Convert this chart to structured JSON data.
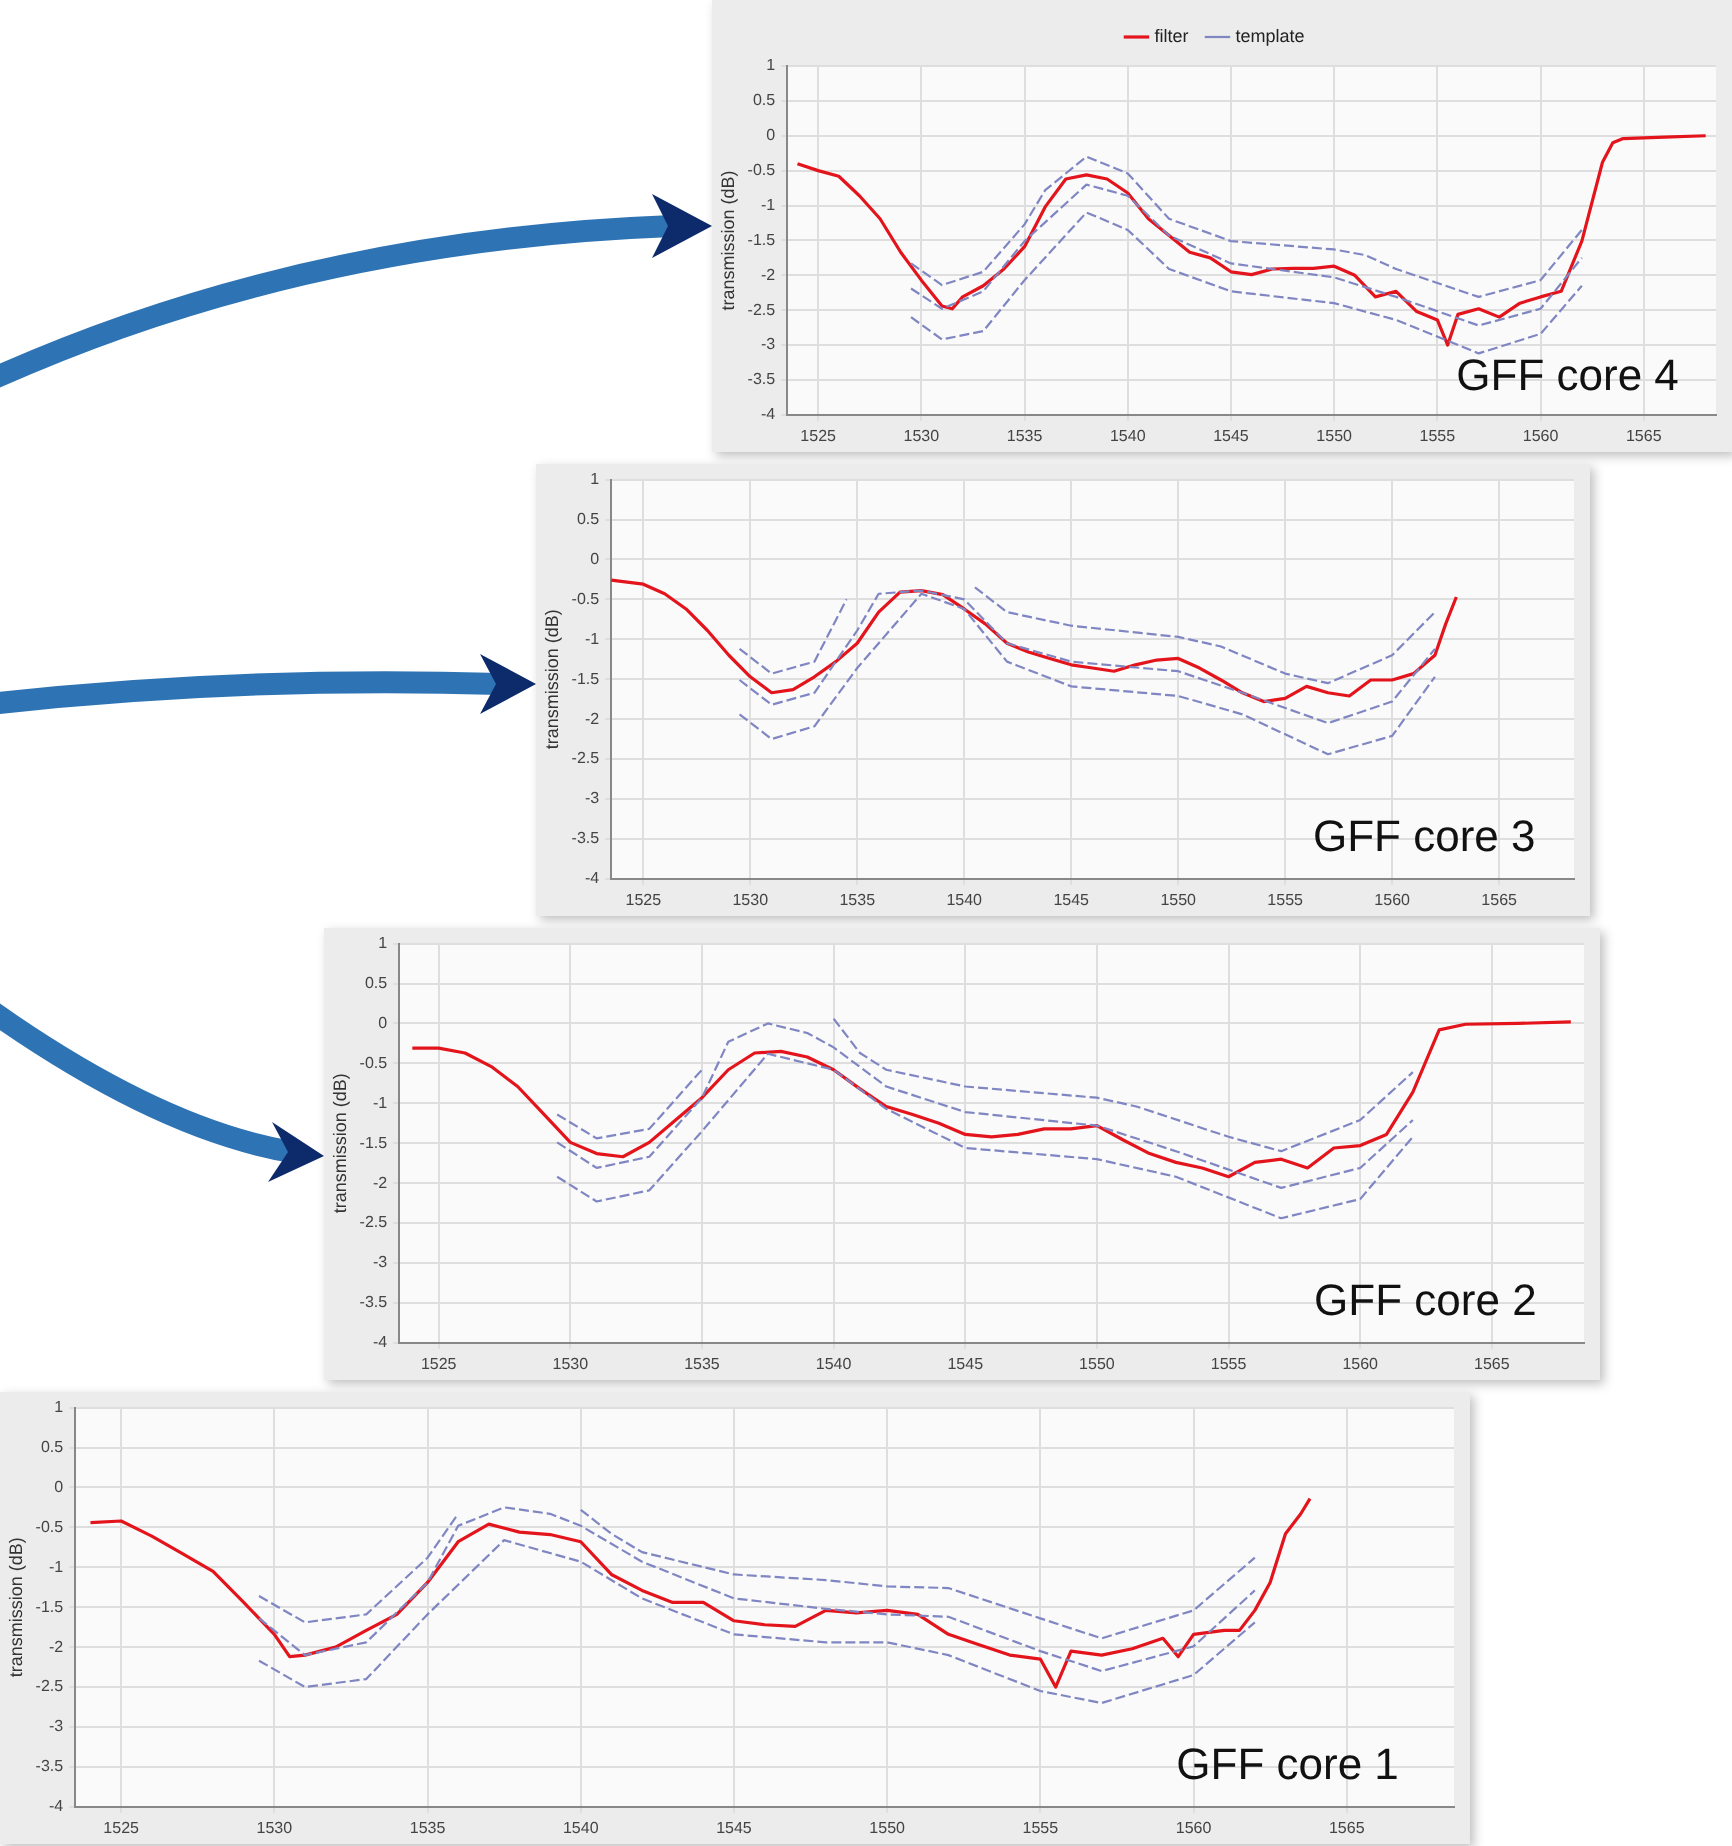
{
  "chart_data": [
    {
      "type": "line",
      "ylabel": "transmission (dB)",
      "annotations": [
        "GFF core 4"
      ],
      "xlim": [
        1523.5,
        1568.5
      ],
      "xticks": [
        1525,
        1530,
        1535,
        1540,
        1545,
        1550,
        1555,
        1560,
        1565
      ],
      "ylim": [
        -4,
        1
      ],
      "yticks": [
        -4,
        -3.5,
        -3,
        -2.5,
        -2,
        -1.5,
        -1,
        -0.5,
        0,
        0.5,
        1
      ],
      "grid": true,
      "legend": "top",
      "series": [
        {
          "name": "filter",
          "color": "#e3141b",
          "line_style": "solid",
          "x": [
            1524,
            1525,
            1526,
            1527,
            1528,
            1529,
            1530,
            1531,
            1531.5,
            1532,
            1533,
            1534,
            1535,
            1536,
            1537,
            1538,
            1539,
            1540,
            1541,
            1542,
            1543,
            1544,
            1545,
            1546,
            1547,
            1548,
            1549,
            1550,
            1551,
            1552,
            1553,
            1554,
            1555,
            1555.5,
            1556,
            1557,
            1558,
            1559,
            1560,
            1561,
            1562,
            1563,
            1563.5,
            1564,
            1566,
            1568
          ],
          "values": [
            -0.4,
            -0.5,
            -0.58,
            -0.86,
            -1.19,
            -1.67,
            -2.07,
            -2.44,
            -2.48,
            -2.31,
            -2.15,
            -1.91,
            -1.59,
            -1.02,
            -0.62,
            -0.56,
            -0.62,
            -0.82,
            -1.19,
            -1.43,
            -1.67,
            -1.75,
            -1.95,
            -1.99,
            -1.91,
            -1.9,
            -1.9,
            -1.87,
            -2.0,
            -2.31,
            -2.23,
            -2.52,
            -2.64,
            -3.0,
            -2.56,
            -2.48,
            -2.6,
            -2.4,
            -2.31,
            -2.23,
            -1.51,
            -0.38,
            -0.1,
            -0.04,
            -0.02,
            0
          ]
        },
        {
          "name": "template",
          "color": "#7f86c2",
          "line_style": "dashed",
          "x": [
            1529.5,
            1531,
            1533,
            1535,
            1538,
            1540,
            1542,
            1545,
            1550,
            1553,
            1557,
            1560,
            1562
          ],
          "values": [
            -2.19,
            -2.48,
            -2.23,
            -1.51,
            -0.7,
            -0.86,
            -1.43,
            -1.83,
            -2.03,
            -2.31,
            -2.72,
            -2.48,
            -1.75
          ]
        },
        {
          "color": "#7f86c2",
          "line_style": "dashed",
          "x": [
            1529.5,
            1531,
            1533,
            1535,
            1536,
            1538,
            1540,
            1542,
            1545,
            1550,
            1551.5,
            1553,
            1557,
            1560,
            1562
          ],
          "values": [
            -1.83,
            -2.14,
            -1.95,
            -1.27,
            -0.78,
            -0.3,
            -0.54,
            -1.19,
            -1.51,
            -1.63,
            -1.71,
            -1.91,
            -2.31,
            -2.07,
            -1.35
          ]
        },
        {
          "color": "#7f86c2",
          "line_style": "dashed",
          "x": [
            1529.5,
            1531,
            1533,
            1535,
            1538,
            1540,
            1542,
            1545,
            1550,
            1553,
            1557,
            1560,
            1562
          ],
          "values": [
            -2.6,
            -2.92,
            -2.8,
            -2.07,
            -1.1,
            -1.35,
            -1.91,
            -2.23,
            -2.4,
            -2.64,
            -3.12,
            -2.84,
            -2.15
          ]
        }
      ]
    },
    {
      "type": "line",
      "ylabel": "transmission (dB)",
      "annotations": [
        "GFF core 3"
      ],
      "xlim": [
        1523.5,
        1568.5
      ],
      "xticks": [
        1525,
        1530,
        1535,
        1540,
        1545,
        1550,
        1555,
        1560,
        1565
      ],
      "ylim": [
        -4,
        1
      ],
      "yticks": [
        -4,
        -3.5,
        -3,
        -2.5,
        -2,
        -1.5,
        -1,
        -0.5,
        0,
        0.5,
        1
      ],
      "grid": true,
      "series": [
        {
          "color": "#e3141b",
          "line_style": "solid",
          "x": [
            1523.5,
            1525,
            1526,
            1527,
            1528,
            1529,
            1530,
            1531,
            1532,
            1533,
            1534,
            1535,
            1536,
            1537,
            1538,
            1539,
            1540,
            1541,
            1542,
            1543,
            1544,
            1545,
            1546,
            1547,
            1548,
            1549,
            1550,
            1551,
            1552,
            1553,
            1554,
            1555,
            1556,
            1557,
            1558,
            1559,
            1560,
            1561,
            1562,
            1562.5,
            1563
          ],
          "values": [
            -0.26,
            -0.31,
            -0.43,
            -0.62,
            -0.89,
            -1.2,
            -1.47,
            -1.67,
            -1.63,
            -1.47,
            -1.28,
            -1.05,
            -0.66,
            -0.41,
            -0.39,
            -0.44,
            -0.62,
            -0.81,
            -1.05,
            -1.16,
            -1.24,
            -1.32,
            -1.36,
            -1.4,
            -1.32,
            -1.26,
            -1.24,
            -1.36,
            -1.51,
            -1.67,
            -1.78,
            -1.74,
            -1.59,
            -1.67,
            -1.71,
            -1.51,
            -1.51,
            -1.43,
            -1.2,
            -0.81,
            -0.47
          ]
        },
        {
          "color": "#7f86c2",
          "line_style": "dashed",
          "x": [
            1529.5,
            1531,
            1533,
            1535,
            1536,
            1538,
            1540,
            1542,
            1545,
            1550,
            1553,
            1557,
            1560,
            1562
          ],
          "values": [
            -1.51,
            -1.82,
            -1.67,
            -0.89,
            -0.43,
            -0.39,
            -0.5,
            -1.05,
            -1.28,
            -1.4,
            -1.67,
            -2.05,
            -1.78,
            -1.12
          ]
        },
        {
          "color": "#7f86c2",
          "line_style": "dashed",
          "x": [
            1529.5,
            1531,
            1533,
            1534.5,
            1537,
            1540.5,
            1542,
            1545,
            1550,
            1552,
            1555,
            1557,
            1560,
            1562
          ],
          "values": [
            -1.12,
            -1.43,
            -1.28,
            -0.5,
            null,
            -0.35,
            -0.66,
            -0.83,
            -0.97,
            -1.09,
            -1.43,
            -1.55,
            -1.2,
            -0.66
          ]
        },
        {
          "color": "#7f86c2",
          "line_style": "dashed",
          "x": [
            1529.5,
            1531,
            1533,
            1535,
            1538,
            1540,
            1542,
            1545,
            1550,
            1553,
            1557,
            1560,
            1562
          ],
          "values": [
            -1.94,
            -2.25,
            -2.09,
            -1.36,
            -0.43,
            -0.62,
            -1.28,
            -1.59,
            -1.71,
            -1.94,
            -2.44,
            -2.21,
            -1.47
          ]
        }
      ]
    },
    {
      "type": "line",
      "ylabel": "transmission (dB)",
      "annotations": [
        "GFF core 2"
      ],
      "xlim": [
        1523.5,
        1568.5
      ],
      "xticks": [
        1525,
        1530,
        1535,
        1540,
        1545,
        1550,
        1555,
        1560,
        1565
      ],
      "ylim": [
        -4,
        1
      ],
      "yticks": [
        -4,
        -3.5,
        -3,
        -2.5,
        -2,
        -1.5,
        -1,
        -0.5,
        0,
        0.5,
        1
      ],
      "grid": true,
      "series": [
        {
          "color": "#e3141b",
          "line_style": "solid",
          "x": [
            1524,
            1525,
            1526,
            1527,
            1528,
            1529,
            1530,
            1531,
            1532,
            1533,
            1534,
            1535,
            1536,
            1537,
            1538,
            1539,
            1540,
            1541,
            1542,
            1543,
            1544,
            1545,
            1546,
            1547,
            1548,
            1549,
            1550,
            1551,
            1552,
            1553,
            1554,
            1555,
            1556,
            1557,
            1558,
            1559,
            1560,
            1561,
            1562,
            1563,
            1564,
            1566,
            1568
          ],
          "values": [
            -0.31,
            -0.31,
            -0.37,
            -0.54,
            -0.79,
            -1.14,
            -1.49,
            -1.63,
            -1.67,
            -1.49,
            -1.21,
            -0.93,
            -0.58,
            -0.37,
            -0.35,
            -0.42,
            -0.58,
            -0.82,
            -1.04,
            -1.14,
            -1.25,
            -1.39,
            -1.42,
            -1.39,
            -1.32,
            -1.32,
            -1.28,
            -1.46,
            -1.63,
            -1.74,
            -1.81,
            -1.92,
            -1.74,
            -1.7,
            -1.81,
            -1.56,
            -1.53,
            -1.39,
            -0.86,
            -0.08,
            -0.01,
            0,
            0.02
          ]
        },
        {
          "color": "#7f86c2",
          "line_style": "dashed",
          "x": [
            1529.5,
            1531,
            1533,
            1535,
            1536,
            1537.5,
            1539,
            1540,
            1542,
            1545,
            1550,
            1553,
            1557,
            1560,
            1562
          ],
          "values": [
            -1.49,
            -1.81,
            -1.67,
            -0.93,
            -0.23,
            0,
            -0.12,
            -0.3,
            -0.79,
            -1.11,
            -1.28,
            -1.6,
            -2.06,
            -1.81,
            -1.21
          ]
        },
        {
          "color": "#7f86c2",
          "line_style": "dashed",
          "x": [
            1529.5,
            1531,
            1533,
            1535,
            1537.5,
            1540,
            1541,
            1542,
            1545,
            1550,
            1551.5,
            1555,
            1557,
            1560,
            1562
          ],
          "values": [
            -1.14,
            -1.44,
            -1.32,
            -0.58,
            null,
            0.06,
            -0.37,
            -0.58,
            -0.79,
            -0.93,
            -1.04,
            -1.42,
            -1.6,
            -1.21,
            -0.61
          ]
        },
        {
          "color": "#7f86c2",
          "line_style": "dashed",
          "x": [
            1529.5,
            1531,
            1533,
            1535,
            1537.5,
            1540,
            1542,
            1545,
            1550,
            1553,
            1557,
            1560,
            1562
          ],
          "values": [
            -1.92,
            -2.23,
            -2.09,
            -1.35,
            -0.38,
            -0.58,
            -1.07,
            -1.56,
            -1.7,
            -1.92,
            -2.44,
            -2.2,
            -1.42
          ]
        }
      ]
    },
    {
      "type": "line",
      "ylabel": "transmission (dB)",
      "annotations": [
        "GFF core 1"
      ],
      "xlim": [
        1523.5,
        1568.5
      ],
      "xticks": [
        1525,
        1530,
        1535,
        1540,
        1545,
        1550,
        1555,
        1560,
        1565
      ],
      "ylim": [
        -4,
        1
      ],
      "yticks": [
        -4,
        -3.5,
        -3,
        -2.5,
        -2,
        -1.5,
        -1,
        -0.5,
        0,
        0.5,
        1
      ],
      "grid": true,
      "series": [
        {
          "color": "#e3141b",
          "line_style": "solid",
          "x": [
            1524,
            1525,
            1526,
            1527,
            1528,
            1529,
            1530,
            1530.5,
            1531,
            1532,
            1533,
            1534,
            1535,
            1536,
            1537,
            1538,
            1539,
            1540,
            1541,
            1542,
            1543,
            1544,
            1545,
            1546,
            1547,
            1548,
            1549,
            1550,
            1551,
            1552,
            1553,
            1554,
            1555,
            1555.5,
            1556,
            1557,
            1558,
            1559,
            1559.5,
            1560,
            1561,
            1561.5,
            1562,
            1562.5,
            1563,
            1563.5,
            1563.8
          ],
          "values": [
            -0.44,
            -0.42,
            -0.61,
            -0.83,
            -1.05,
            -1.44,
            -1.84,
            -2.12,
            -2.1,
            -2.0,
            -1.79,
            -1.59,
            -1.19,
            -0.68,
            -0.46,
            -0.56,
            -0.59,
            -0.68,
            -1.09,
            -1.29,
            -1.44,
            -1.44,
            -1.67,
            -1.72,
            -1.74,
            -1.54,
            -1.57,
            -1.54,
            -1.59,
            -1.84,
            -1.97,
            -2.1,
            -2.15,
            -2.5,
            -2.05,
            -2.1,
            -2.02,
            -1.89,
            -2.12,
            -1.84,
            -1.79,
            -1.79,
            -1.54,
            -1.19,
            -0.58,
            -0.33,
            -0.14
          ]
        },
        {
          "color": "#7f86c2",
          "line_style": "dashed",
          "x": [
            1529.5,
            1531,
            1533,
            1535,
            1536,
            1537.5,
            1539,
            1540,
            1542,
            1545,
            1548,
            1550,
            1552,
            1555,
            1557,
            1560,
            1562
          ],
          "values": [
            -1.64,
            -2.1,
            -1.94,
            -1.19,
            -0.48,
            -0.25,
            -0.33,
            -0.48,
            -0.93,
            -1.39,
            -1.52,
            -1.59,
            -1.62,
            -2.05,
            -2.3,
            -1.99,
            -1.29
          ]
        },
        {
          "color": "#7f86c2",
          "line_style": "dashed",
          "x": [
            1529.5,
            1531,
            1533,
            1535,
            1536,
            1538,
            1540,
            1541,
            1542,
            1545,
            1548,
            1550,
            1552,
            1555,
            1557,
            1560,
            1562
          ],
          "values": [
            -1.36,
            -1.69,
            -1.59,
            -0.88,
            -0.33,
            null,
            -0.28,
            -0.58,
            -0.81,
            -1.09,
            -1.16,
            -1.24,
            -1.26,
            -1.64,
            -1.89,
            -1.54,
            -0.88
          ]
        },
        {
          "color": "#7f86c2",
          "line_style": "dashed",
          "x": [
            1529.5,
            1531,
            1533,
            1535,
            1537.5,
            1540,
            1542,
            1545,
            1548,
            1550,
            1552,
            1555,
            1557,
            1560,
            1562
          ],
          "values": [
            -2.17,
            -2.5,
            -2.4,
            -1.59,
            -0.66,
            -0.93,
            -1.39,
            -1.84,
            -1.94,
            -1.94,
            -2.1,
            -2.55,
            -2.7,
            -2.35,
            -1.69
          ]
        }
      ]
    }
  ]
}
